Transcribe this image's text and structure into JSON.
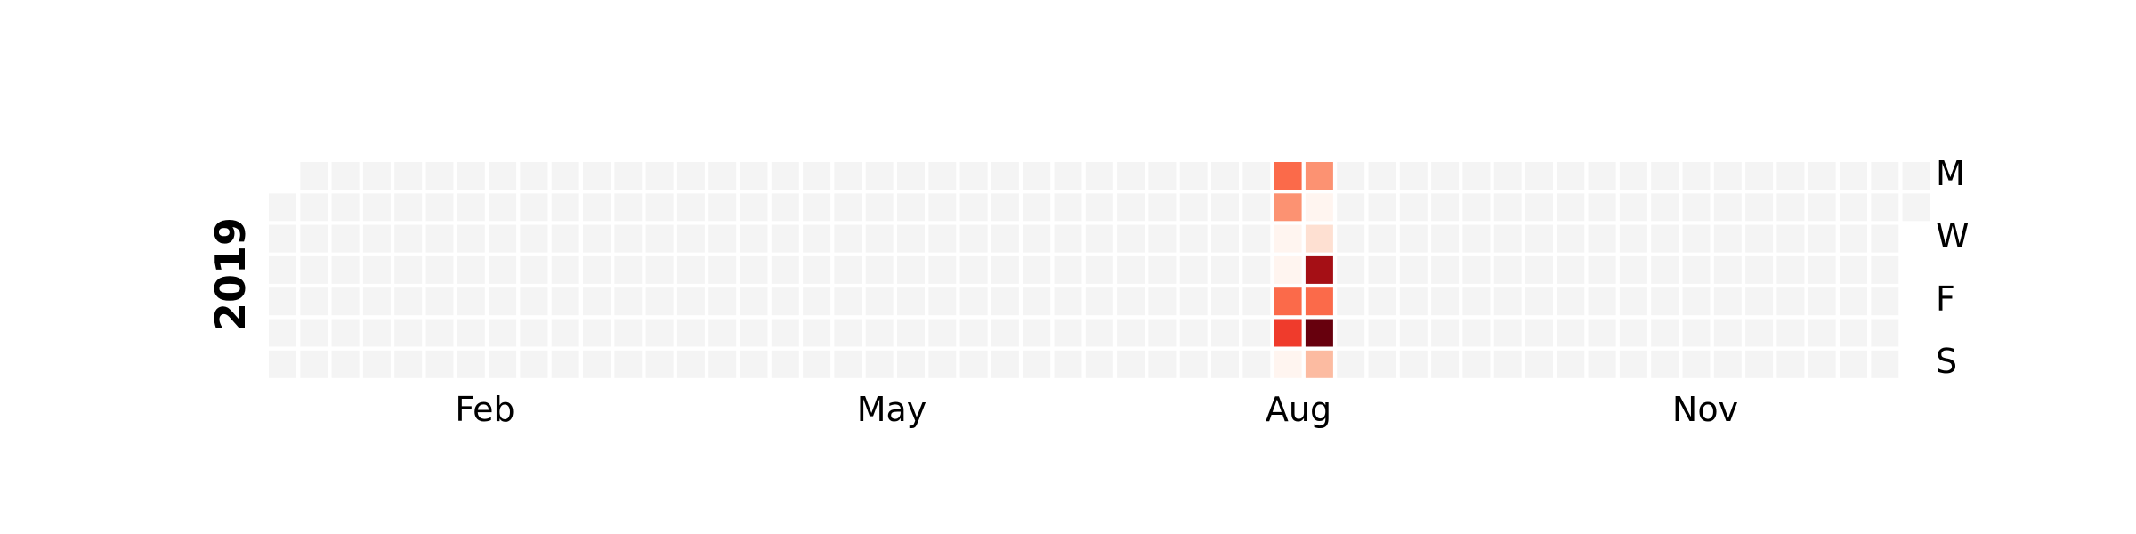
{
  "chart_data": {
    "type": "heatmap",
    "year": "2019",
    "start_weekday_offset": 1,
    "month_labels": [
      "Feb",
      "May",
      "Aug",
      "Nov"
    ],
    "day_labels": [
      "M",
      "W",
      "F",
      "S"
    ],
    "empty_color": "#f4f4f4",
    "colors": [
      "#fff5f0",
      "#fee0d2",
      "#fcbba1",
      "#fc9272",
      "#fb6a4a",
      "#ef3b2c",
      "#cb181d",
      "#a50f15",
      "#67000d"
    ],
    "cells": [
      {
        "date": "2019-08-12",
        "value": 4
      },
      {
        "date": "2019-08-13",
        "value": 3
      },
      {
        "date": "2019-08-14",
        "value": 0
      },
      {
        "date": "2019-08-15",
        "value": 0
      },
      {
        "date": "2019-08-16",
        "value": 4
      },
      {
        "date": "2019-08-17",
        "value": 5
      },
      {
        "date": "2019-08-18",
        "value": 0
      },
      {
        "date": "2019-08-19",
        "value": 3
      },
      {
        "date": "2019-08-20",
        "value": 0
      },
      {
        "date": "2019-08-21",
        "value": 1
      },
      {
        "date": "2019-08-22",
        "value": 7
      },
      {
        "date": "2019-08-23",
        "value": 4
      },
      {
        "date": "2019-08-24",
        "value": 8
      },
      {
        "date": "2019-08-25",
        "value": 2
      }
    ]
  }
}
